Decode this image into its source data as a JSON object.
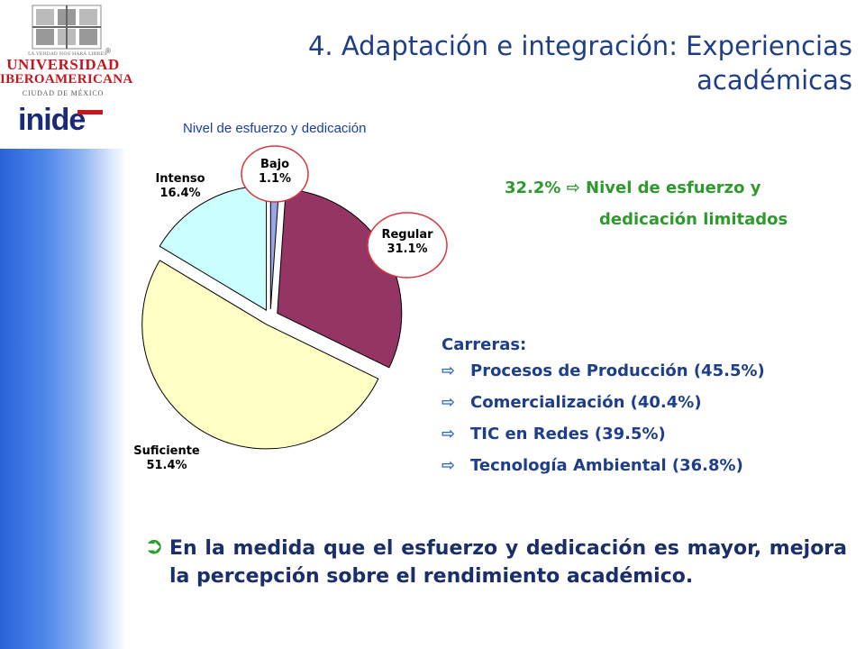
{
  "header": {
    "seal_motto": "LA VERDAD NOS HARÁ LIBRES",
    "registered_mark": "®",
    "university_line1": "UNIVERSIDAD",
    "university_line2": "IBEROAMERICANA",
    "university_line3": "CIUDAD DE MÉXICO",
    "inide_logo": "inide",
    "title": "4. Adaptación e integración: Experiencias académicas"
  },
  "colors": {
    "sidebar": "#3c74e0",
    "title": "#1f3e8a",
    "green_text": "#2e9a2e",
    "list_text": "#1f3e8a",
    "callout_circle": "#d9363e",
    "logo_red": "#c4161c"
  },
  "chart_data": {
    "type": "pie",
    "title": "Nivel de esfuerzo y dedicación",
    "categories": [
      "Bajo",
      "Regular",
      "Suficiente",
      "Intenso"
    ],
    "values": [
      1.1,
      31.1,
      51.4,
      16.4
    ],
    "labels": [
      "Bajo\n1.1%",
      "Regular\n31.1%",
      "Suficiente\n51.4%",
      "Intenso\n16.4%"
    ],
    "colors": [
      "#9aa6ea",
      "#953563",
      "#ffffc6",
      "#ccffff"
    ],
    "exploded": true,
    "highlighted": [
      "Bajo",
      "Regular"
    ]
  },
  "summary": {
    "line1": "32.2% ⇨ Nivel de esfuerzo y",
    "line2": "dedicación limitados"
  },
  "careers": {
    "title": "Carreras:",
    "arrow_icon": "hollow-right-arrow-icon",
    "items": [
      "Procesos de Producción (45.5%)",
      "Comercialización (40.4%)",
      "TIC en Redes (39.5%)",
      "Tecnología Ambiental (36.8%)"
    ]
  },
  "conclusion": {
    "icon": "green-curved-arrow-icon",
    "text": "En la medida que el esfuerzo y dedicación es mayor, mejora la percepción sobre el rendimiento académico."
  }
}
